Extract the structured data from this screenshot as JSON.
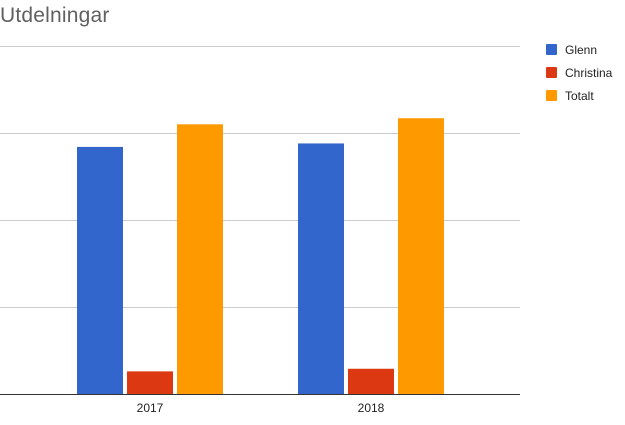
{
  "title": "Utdelningar",
  "chart_data": {
    "type": "bar",
    "title": "Utdelningar",
    "categories": [
      "2017",
      "2018"
    ],
    "series": [
      {
        "name": "Glenn",
        "color": "#3366cc",
        "values": [
          142,
          144
        ]
      },
      {
        "name": "Christina",
        "color": "#dc3912",
        "values": [
          13,
          14.5
        ]
      },
      {
        "name": "Totalt",
        "color": "#ff9900",
        "values": [
          155,
          158.5
        ]
      }
    ],
    "ylim": [
      0,
      200
    ],
    "grid": true,
    "y_tick_labels_visible": false,
    "legend": "right"
  }
}
